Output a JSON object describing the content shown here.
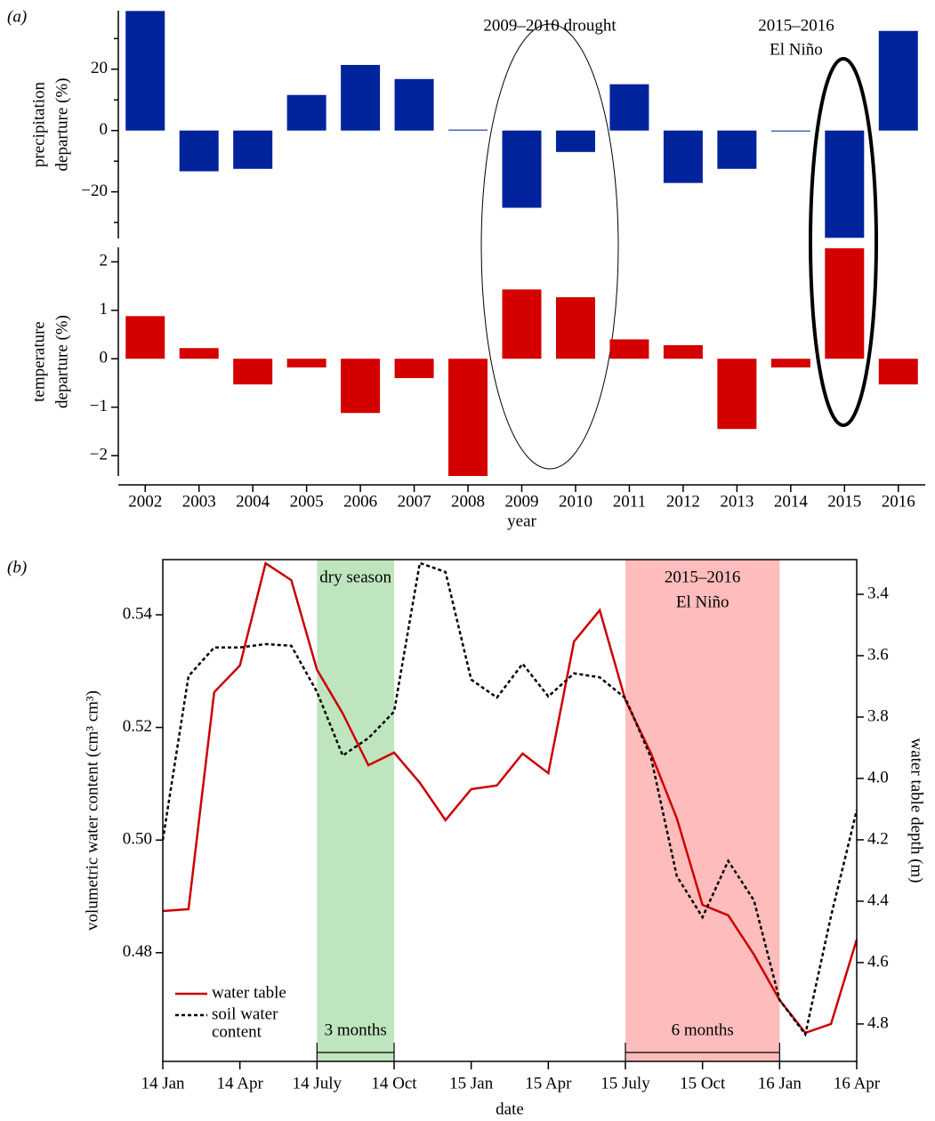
{
  "chart_data": [
    {
      "type": "bar",
      "panel_label": "(a)",
      "ylabel": [
        "precipitation",
        "departure (%)"
      ],
      "annotations": [
        {
          "text": [
            "2009–2010 drought"
          ]
        },
        {
          "text": [
            "2015–2016",
            "El Niño"
          ]
        }
      ],
      "categories": [
        "2002",
        "2003",
        "2004",
        "2005",
        "2006",
        "2007",
        "2008",
        "2009",
        "2010",
        "2011",
        "2012",
        "2013",
        "2014",
        "2015",
        "2016"
      ],
      "values": [
        39,
        -13.3,
        -12.5,
        11.6,
        21.4,
        16.8,
        0.3,
        -25.2,
        -7.0,
        15.1,
        -17.1,
        -12.5,
        -0.3,
        -35,
        32.5
      ],
      "color": "#00239c",
      "ylim": [
        -35.2,
        39.1
      ],
      "yticks": [
        {
          "value": -20,
          "label": "−20"
        },
        0,
        20
      ],
      "yminorticks": [
        -30,
        -10,
        10,
        30
      ]
    },
    {
      "type": "bar",
      "ylabel": [
        "temperature",
        "departure (%)"
      ],
      "xlabel": "year",
      "categories": [
        "2002",
        "2003",
        "2004",
        "2005",
        "2006",
        "2007",
        "2008",
        "2009",
        "2010",
        "2011",
        "2012",
        "2013",
        "2014",
        "2015",
        "2016"
      ],
      "values": [
        0.88,
        0.22,
        -0.53,
        -0.18,
        -1.12,
        -0.4,
        -2.42,
        1.43,
        1.27,
        0.4,
        0.28,
        -1.45,
        -0.18,
        2.28,
        -0.53
      ],
      "color": "#d40000",
      "ylim": [
        -2.42,
        2.3
      ],
      "yticks": [
        {
          "value": -2,
          "label": "−2"
        },
        {
          "value": -1,
          "label": "−1"
        },
        0,
        1,
        2
      ]
    },
    {
      "type": "line",
      "panel_label": "(b)",
      "xlabel": "date",
      "ylabel": "volumetric water content (cm³ cm³)",
      "y2label": "water table depth (m)",
      "x": [
        0,
        1,
        2,
        3,
        4,
        5,
        6,
        7,
        8,
        9,
        10,
        11,
        12,
        13,
        14,
        15,
        16,
        17,
        18,
        19,
        20,
        21,
        22,
        23,
        24,
        25,
        26,
        27
      ],
      "xlim": [
        0,
        27
      ],
      "xticks": [
        {
          "value": 0,
          "label": "14 Jan"
        },
        {
          "value": 3,
          "label": "14 Apr"
        },
        {
          "value": 6,
          "label": "14 July"
        },
        {
          "value": 9,
          "label": "14 Oct"
        },
        {
          "value": 12,
          "label": "15 Jan"
        },
        {
          "value": 15,
          "label": "15 Apr"
        },
        {
          "value": 18,
          "label": "15 July"
        },
        {
          "value": 21,
          "label": "15 Oct"
        },
        {
          "value": 24,
          "label": "16 Jan"
        },
        {
          "value": 27,
          "label": "16 Apr"
        }
      ],
      "ylim": [
        0.4607,
        0.5498
      ],
      "yticks": [
        0.48,
        {
          "value": 0.5,
          "label": "0.50"
        },
        0.52,
        0.54
      ],
      "y2lim": [
        4.922,
        3.287
      ],
      "y2ticks": [
        3.4,
        3.6,
        3.8,
        {
          "value": 4,
          "label": "4.0"
        },
        4.2,
        4.4,
        4.6,
        4.8
      ],
      "shaded_regions": [
        {
          "label": [
            "dry season"
          ],
          "x": [
            6,
            9
          ],
          "color": "#bfe5bf"
        },
        {
          "label": [
            "2015–2016",
            "El Niño"
          ],
          "x": [
            18,
            24
          ],
          "color": "#ffbcbc"
        }
      ],
      "brackets": [
        {
          "label": "3 months",
          "x": [
            6,
            9
          ]
        },
        {
          "label": "6 months",
          "x": [
            18,
            24
          ]
        }
      ],
      "legend": "lower left",
      "series": [
        {
          "name": [
            "water table"
          ],
          "color": "#cc0000",
          "style": "solid",
          "axis": "y2",
          "values": [
            4.432,
            4.426,
            3.719,
            3.632,
            3.299,
            3.354,
            3.646,
            3.788,
            3.957,
            3.916,
            4.014,
            4.136,
            4.035,
            4.023,
            3.919,
            3.983,
            3.554,
            3.452,
            3.745,
            3.919,
            4.13,
            4.412,
            4.446,
            4.574,
            4.722,
            4.829,
            4.8,
            4.525
          ]
        },
        {
          "name": [
            "soil water",
            "content"
          ],
          "color": "#000000",
          "style": "dotted",
          "values": [
            0.5,
            0.5291,
            0.5342,
            0.5342,
            0.5348,
            0.5345,
            0.5263,
            0.515,
            0.5181,
            0.5228,
            0.5492,
            0.5476,
            0.5285,
            0.5253,
            0.5313,
            0.5255,
            0.5296,
            0.5289,
            0.5252,
            0.5146,
            0.4936,
            0.4863,
            0.4963,
            0.4893,
            0.4716,
            0.4655,
            0.4865,
            0.5053
          ]
        }
      ]
    }
  ]
}
